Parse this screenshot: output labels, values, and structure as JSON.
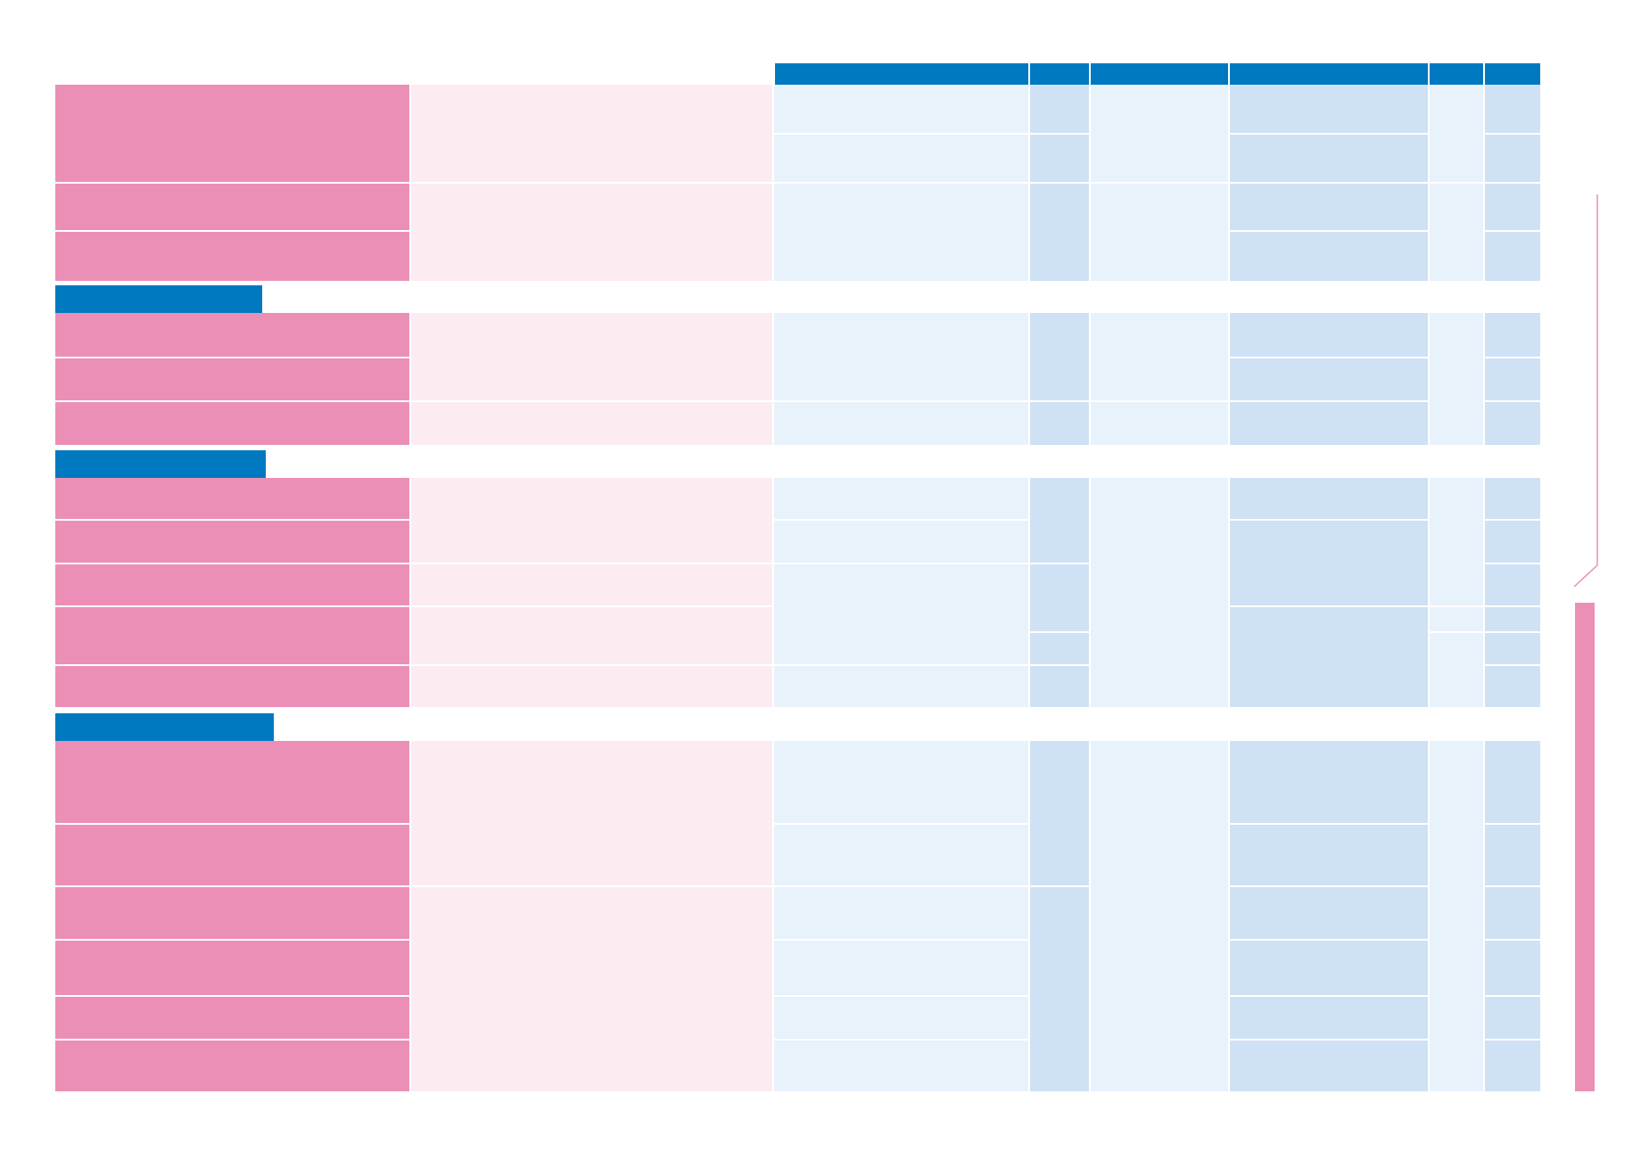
{
  "colors": {
    "header_blue": "#0079c1",
    "row_pink": "#ec8fb7",
    "row_pink_light": "#fcecf2",
    "cell_light_blue": "#e8f2fb",
    "cell_mid_blue": "#cfe1f4"
  },
  "table": {
    "column_headers": [
      "",
      "",
      "",
      "",
      "",
      ""
    ],
    "section_titles": [
      "",
      "",
      ""
    ]
  },
  "side_marker": {
    "label": ""
  }
}
